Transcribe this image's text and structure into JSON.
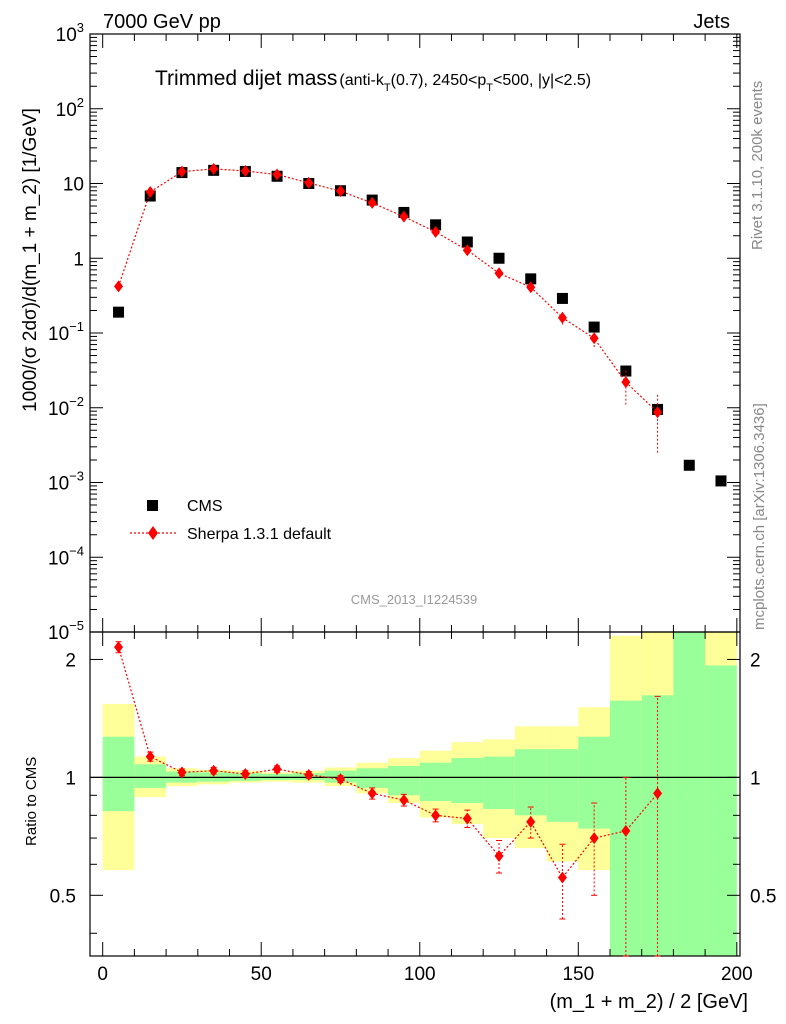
{
  "header": {
    "energy": "7000 GeV pp",
    "category": "Jets",
    "title_main": "Trimmed dijet mass",
    "title_sub": "(anti-kT(0.7), 2450<pT<500, |y|<2.5)",
    "analysis_id": "CMS_2013_I1224539",
    "side_top": "Rivet 3.1.10,  200k events",
    "side_bottom": "mcplots.cern.ch [arXiv:1306.3436]"
  },
  "colors": {
    "cms": "#000000",
    "sherpa": "#ff0000",
    "band_inner": "#99ff99",
    "band_outer": "#ffff99"
  },
  "chart_data": [
    {
      "type": "scatter",
      "title": "Trimmed dijet mass",
      "xlabel": "(m_1 + m_2) / 2 [GeV]",
      "ylabel": "1000/(σ 2dσ)/d(m_1 + m_2) [1/GeV]",
      "xlim": [
        -4,
        201
      ],
      "ylim": [
        1e-05,
        1000
      ],
      "yscale": "log",
      "yticks": [
        "10^-5",
        "10^-4",
        "10^-3",
        "10^-2",
        "10^-1",
        "1",
        "10",
        "10^2",
        "10^3"
      ],
      "legend": "bottom-left",
      "series": [
        {
          "name": "CMS",
          "marker": "square",
          "x": [
            5,
            15,
            25,
            35,
            45,
            55,
            65,
            75,
            85,
            95,
            105,
            115,
            125,
            135,
            145,
            155,
            165,
            175,
            185,
            195
          ],
          "y": [
            0.19,
            6.8,
            14.0,
            15.0,
            14.5,
            12.5,
            10.0,
            8.0,
            6.0,
            4.1,
            2.8,
            1.65,
            1.0,
            0.53,
            0.29,
            0.12,
            0.031,
            0.0095,
            0.0017,
            0.00105
          ]
        },
        {
          "name": "Sherpa 1.3.1 default",
          "marker": "diamond",
          "x": [
            5,
            15,
            25,
            35,
            45,
            55,
            65,
            75,
            85,
            95,
            105,
            115,
            125,
            135,
            145,
            155,
            165,
            175
          ],
          "y": [
            0.42,
            7.7,
            14.4,
            15.7,
            14.7,
            13.2,
            10.2,
            7.9,
            5.5,
            3.6,
            2.25,
            1.28,
            0.63,
            0.41,
            0.16,
            0.085,
            0.022,
            0.0087
          ],
          "err_lo": [
            0.05,
            0.4,
            0.5,
            0.5,
            0.5,
            0.5,
            0.4,
            0.3,
            0.25,
            0.2,
            0.15,
            0.1,
            0.07,
            0.05,
            0.03,
            0.02,
            0.011,
            0.0062
          ],
          "err_hi": [
            0.05,
            0.4,
            0.5,
            0.5,
            0.5,
            0.5,
            0.4,
            0.3,
            0.25,
            0.2,
            0.15,
            0.1,
            0.07,
            0.05,
            0.03,
            0.02,
            0.011,
            0.0063
          ]
        }
      ]
    },
    {
      "type": "scatter",
      "xlabel": "(m_1 + m_2) / 2 [GeV]",
      "ylabel": "Ratio to CMS",
      "xlim": [
        -4,
        201
      ],
      "ylim": [
        0.35,
        2.35
      ],
      "xticks": [
        0,
        50,
        100,
        150,
        200
      ],
      "yticks": [
        0.5,
        1,
        2
      ],
      "bins": [
        [
          0,
          10
        ],
        [
          10,
          20
        ],
        [
          20,
          30
        ],
        [
          30,
          40
        ],
        [
          40,
          50
        ],
        [
          50,
          60
        ],
        [
          60,
          70
        ],
        [
          70,
          80
        ],
        [
          80,
          90
        ],
        [
          90,
          100
        ],
        [
          100,
          110
        ],
        [
          110,
          120
        ],
        [
          120,
          130
        ],
        [
          130,
          140
        ],
        [
          140,
          150
        ],
        [
          150,
          160
        ],
        [
          160,
          170
        ],
        [
          170,
          180
        ],
        [
          180,
          190
        ],
        [
          190,
          200
        ]
      ],
      "bands": {
        "inner_lo": [
          0.82,
          0.94,
          0.97,
          0.975,
          0.98,
          0.985,
          0.985,
          0.97,
          0.94,
          0.9,
          0.87,
          0.86,
          0.83,
          0.8,
          0.77,
          0.74,
          0.35,
          0.35,
          0.35,
          0.35
        ],
        "inner_hi": [
          1.27,
          1.08,
          1.035,
          1.03,
          1.025,
          1.02,
          1.025,
          1.04,
          1.055,
          1.07,
          1.09,
          1.12,
          1.13,
          1.18,
          1.18,
          1.27,
          1.57,
          1.62,
          2.35,
          1.93
        ],
        "outer_lo": [
          0.58,
          0.89,
          0.95,
          0.96,
          0.97,
          0.975,
          0.97,
          0.95,
          0.91,
          0.86,
          0.79,
          0.76,
          0.7,
          0.66,
          0.61,
          0.58,
          0.35,
          0.35,
          0.35,
          0.35
        ],
        "outer_hi": [
          1.54,
          1.13,
          1.055,
          1.045,
          1.04,
          1.03,
          1.04,
          1.06,
          1.09,
          1.12,
          1.17,
          1.23,
          1.25,
          1.35,
          1.35,
          1.51,
          2.3,
          2.35,
          2.35,
          2.35
        ]
      },
      "series": [
        {
          "name": "Sherpa 1.3.1 default",
          "x": [
            5,
            15,
            25,
            35,
            45,
            55,
            65,
            75,
            85,
            95,
            105,
            115,
            125,
            135,
            145,
            155,
            165,
            175
          ],
          "y": [
            2.15,
            1.13,
            1.03,
            1.04,
            1.02,
            1.05,
            1.015,
            0.99,
            0.91,
            0.875,
            0.8,
            0.785,
            0.63,
            0.77,
            0.555,
            0.7,
            0.73,
            0.91
          ],
          "err_lo": [
            0.07,
            0.03,
            0.02,
            0.02,
            0.02,
            0.02,
            0.02,
            0.02,
            0.03,
            0.03,
            0.03,
            0.04,
            0.06,
            0.07,
            0.12,
            0.2,
            0.4,
            0.56
          ],
          "err_hi": [
            0.07,
            0.03,
            0.02,
            0.02,
            0.02,
            0.02,
            0.02,
            0.02,
            0.03,
            0.03,
            0.03,
            0.04,
            0.06,
            0.07,
            0.12,
            0.16,
            0.27,
            0.7
          ]
        }
      ]
    }
  ]
}
